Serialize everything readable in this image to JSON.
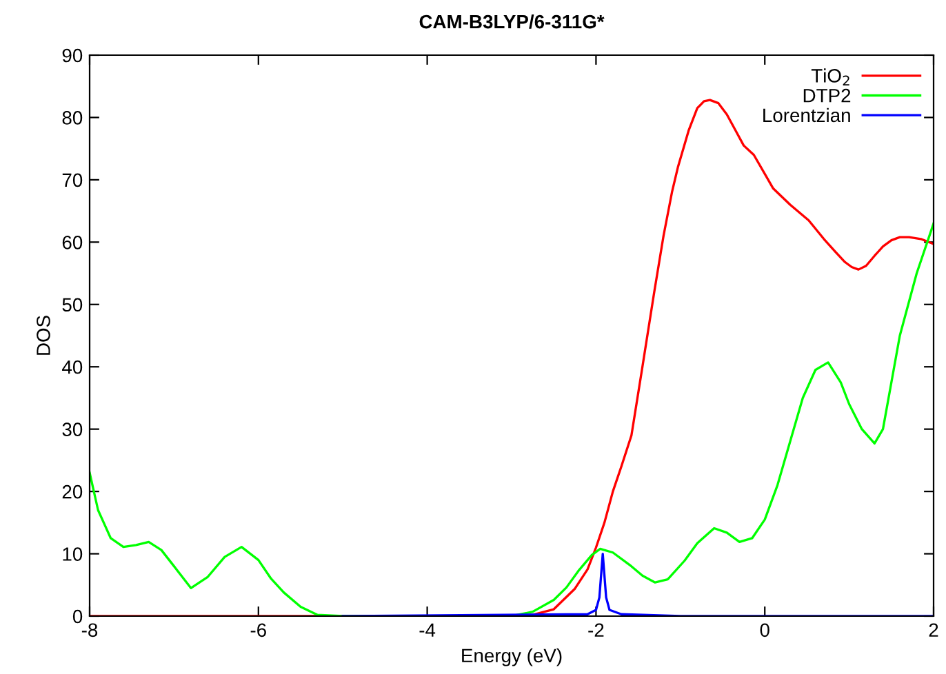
{
  "chart_data": {
    "type": "line",
    "title": "CAM-B3LYP/6-311G*",
    "xlabel": "Energy (eV)",
    "ylabel": "DOS",
    "xlim": [
      -8,
      2
    ],
    "ylim": [
      0,
      90
    ],
    "xticks": [
      -8,
      -6,
      -4,
      -2,
      0,
      2
    ],
    "yticks": [
      0,
      10,
      20,
      30,
      40,
      50,
      60,
      70,
      80,
      90
    ],
    "grid": false,
    "legend": "top right",
    "marker": "none",
    "line_style": "solid",
    "series": [
      {
        "name": "TiO$_{2}$",
        "color": "#ff0000",
        "x": [
          -8,
          -3.0,
          -2.75,
          -2.5,
          -2.25,
          -2.1,
          -2.0,
          -1.9,
          -1.8,
          -1.7,
          -1.58,
          -1.45,
          -1.31,
          -1.2,
          -1.1,
          -1.03,
          -0.9,
          -0.8,
          -0.72,
          -0.65,
          -0.55,
          -0.45,
          -0.35,
          -0.25,
          -0.13,
          0.1,
          0.3,
          0.52,
          0.7,
          0.84,
          0.95,
          1.03,
          1.11,
          1.2,
          1.3,
          1.4,
          1.5,
          1.6,
          1.71,
          1.85,
          2
        ],
        "values": [
          0,
          0,
          0.2,
          1.1,
          4.4,
          7.5,
          11,
          15,
          20,
          24,
          29,
          40,
          52,
          61,
          68,
          72,
          78,
          81.5,
          82.6,
          82.8,
          82.3,
          80.5,
          78,
          75.5,
          74,
          68.6,
          66,
          63.5,
          60.5,
          58.4,
          56.8,
          56,
          55.6,
          56.2,
          57.8,
          59.3,
          60.3,
          60.8,
          60.8,
          60.5,
          59.7
        ]
      },
      {
        "name": "DTP2",
        "color": "#00ff00",
        "x": [
          -8,
          -7.9,
          -7.75,
          -7.6,
          -7.45,
          -7.3,
          -7.15,
          -7.0,
          -6.8,
          -6.6,
          -6.4,
          -6.2,
          -6.0,
          -5.85,
          -5.7,
          -5.5,
          -5.3,
          -5.0,
          -3.0,
          -2.75,
          -2.5,
          -2.35,
          -2.2,
          -2.05,
          -1.95,
          -1.8,
          -1.6,
          -1.45,
          -1.3,
          -1.15,
          -0.95,
          -0.8,
          -0.6,
          -0.45,
          -0.3,
          -0.15,
          0,
          0.15,
          0.3,
          0.45,
          0.6,
          0.75,
          0.9,
          1.0,
          1.15,
          1.3,
          1.4,
          1.6,
          1.8,
          2
        ],
        "values": [
          23,
          17,
          12.5,
          11.1,
          11.4,
          11.9,
          10.6,
          8,
          4.5,
          6.3,
          9.5,
          11.1,
          9,
          6,
          3.8,
          1.5,
          0.2,
          0,
          0,
          0.7,
          2.6,
          4.6,
          7.4,
          9.8,
          10.8,
          10.2,
          8.2,
          6.5,
          5.4,
          5.9,
          8.9,
          11.7,
          14.1,
          13.4,
          11.9,
          12.5,
          15.5,
          21,
          28,
          35,
          39.5,
          40.7,
          37.5,
          34,
          30,
          27.7,
          30,
          45,
          55,
          63
        ]
      },
      {
        "name": "Lorentzian",
        "color": "#0000ff",
        "x": [
          -5,
          -2.1,
          -2.0,
          -1.96,
          -1.92,
          -1.88,
          -1.84,
          -1.7,
          -1,
          2
        ],
        "values": [
          0,
          0.3,
          1,
          3,
          10,
          3,
          1,
          0.3,
          0,
          0
        ]
      }
    ]
  }
}
